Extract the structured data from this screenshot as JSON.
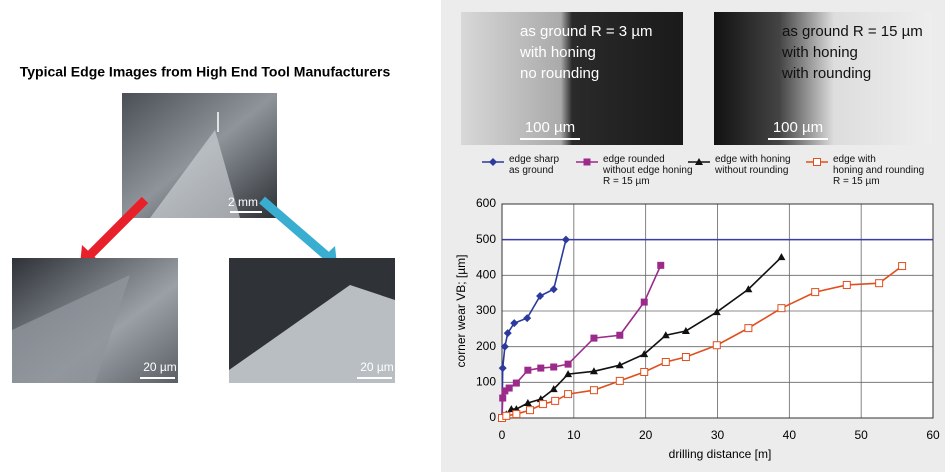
{
  "left": {
    "title": "Typical Edge Images from High End Tool Manufacturers",
    "main_scale": "2 mm",
    "left_scale": "20 µm",
    "right_scale": "20 µm"
  },
  "images": [
    {
      "lines": [
        "as ground R = 3 µm",
        "with honing",
        "no rounding"
      ],
      "scale": "100 µm"
    },
    {
      "lines": [
        "as ground R = 15 µm",
        "with honing",
        "with rounding"
      ],
      "scale": "100 µm"
    }
  ],
  "chart_data": {
    "type": "line",
    "xlabel": "drilling distance [m]",
    "ylabel": "corner wear VB; [µm]",
    "xlim": [
      0,
      60
    ],
    "xticks": [
      0,
      10,
      20,
      30,
      40,
      50,
      60
    ],
    "ylim": [
      0,
      600
    ],
    "yticks": [
      0,
      100,
      200,
      300,
      400,
      500,
      600
    ],
    "grid": true,
    "hline": {
      "value": 500,
      "color": "#3b3bb0"
    },
    "series": [
      {
        "name": "edge sharp\nas ground",
        "color": "#2b3a9c",
        "marker": "diamond",
        "x": [
          0,
          0.1,
          0.4,
          0.8,
          1.7,
          3.5,
          5.3,
          7.2,
          8.9
        ],
        "values": [
          0,
          140,
          200,
          238,
          266,
          280,
          342,
          361,
          500
        ]
      },
      {
        "name": "edge rounded\nwithout edge honing\nR = 15 µm",
        "color": "#9b2a8a",
        "marker": "square",
        "x": [
          0,
          0.1,
          0.4,
          1,
          2,
          3.6,
          5.4,
          7.2,
          9.2,
          12.8,
          16.4,
          19.8,
          22.1
        ],
        "values": [
          0,
          56,
          76,
          84,
          98,
          134,
          140,
          143,
          151,
          224,
          232,
          325,
          428
        ]
      },
      {
        "name": "edge with honing\nwithout rounding",
        "color": "#111111",
        "marker": "triangle",
        "x": [
          0,
          0.6,
          1.3,
          2,
          3.6,
          5.4,
          7.2,
          9.2,
          12.8,
          16.4,
          19.8,
          22.8,
          25.6,
          29.9,
          34.3,
          38.9
        ],
        "values": [
          0,
          10,
          25,
          25,
          42,
          53,
          81,
          123,
          131,
          148,
          179,
          232,
          244,
          297,
          361,
          451
        ]
      },
      {
        "name": "edge with\nhoning and rounding\nR = 15 µm",
        "color": "#e0501e",
        "marker": "open-square",
        "x": [
          0,
          0.6,
          2,
          3.9,
          5.7,
          7.4,
          9.2,
          12.8,
          16.4,
          19.8,
          22.8,
          25.6,
          29.9,
          34.3,
          38.9,
          43.6,
          48,
          52.5,
          55.7
        ],
        "values": [
          0,
          6,
          11,
          22,
          39,
          48,
          67,
          78,
          104,
          129,
          157,
          171,
          204,
          252,
          308,
          353,
          373,
          378,
          426
        ]
      }
    ]
  }
}
